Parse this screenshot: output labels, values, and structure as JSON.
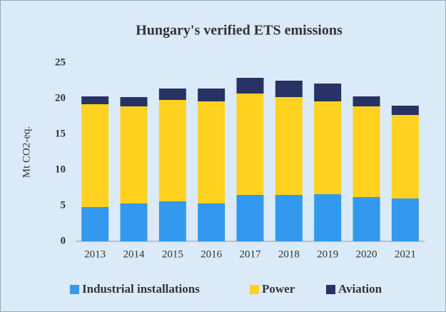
{
  "chart_data": {
    "type": "stacked-bar",
    "title": "Hungary's verified ETS emissions",
    "y_label": "Mt CO2-eq.",
    "categories": [
      "2013",
      "2014",
      "2015",
      "2016",
      "2017",
      "2018",
      "2019",
      "2020",
      "2021"
    ],
    "series": [
      {
        "name": "Industrial installations",
        "color": "#3399ee",
        "values": [
          4.8,
          5.3,
          5.6,
          5.3,
          6.5,
          6.5,
          6.6,
          6.2,
          6.0
        ]
      },
      {
        "name": "Power",
        "color": "#ffd21f",
        "values": [
          14.4,
          13.6,
          14.2,
          14.3,
          14.2,
          13.7,
          13.0,
          12.7,
          11.7
        ]
      },
      {
        "name": "Aviation",
        "color": "#283264",
        "values": [
          1.1,
          1.3,
          1.6,
          1.8,
          2.2,
          2.3,
          2.5,
          1.4,
          1.3
        ]
      }
    ],
    "ylim": [
      0,
      25
    ],
    "yticks": [
      0,
      5,
      10,
      15,
      20,
      25
    ],
    "legend": "bottom"
  }
}
